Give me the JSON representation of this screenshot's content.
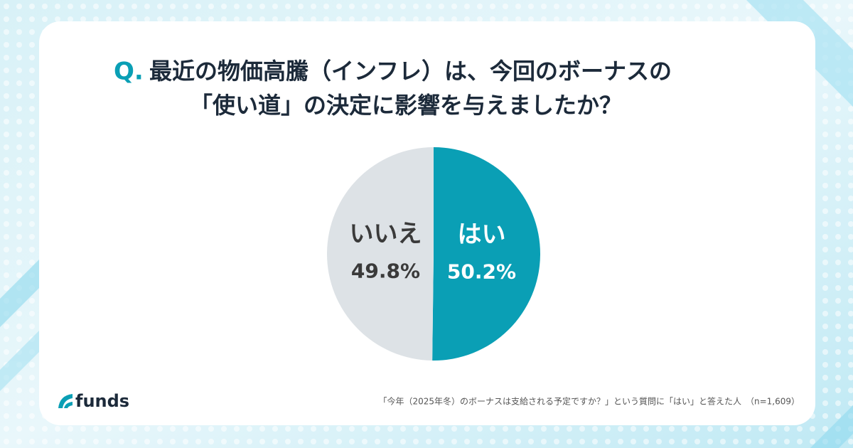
{
  "brand": "funds",
  "chart_data": {
    "type": "pie",
    "title_prefix": "Q.",
    "title": [
      "最近の物価高騰（インフレ）は、今回のボーナスの",
      "「使い道」の決定に影響を与えましたか？"
    ],
    "categories": [
      "はい",
      "いいえ"
    ],
    "values": [
      50.2,
      49.8
    ],
    "value_labels": [
      "50.2%",
      "49.8%"
    ],
    "colors": [
      "#0a9fb5",
      "#dde2e6"
    ],
    "label_colors": [
      "#ffffff",
      "#3a3a3a"
    ],
    "note": "「今年（2025年冬）のボーナスは支給される予定ですか？」という質問に「はい」と答えた人　（n=1,609）"
  }
}
